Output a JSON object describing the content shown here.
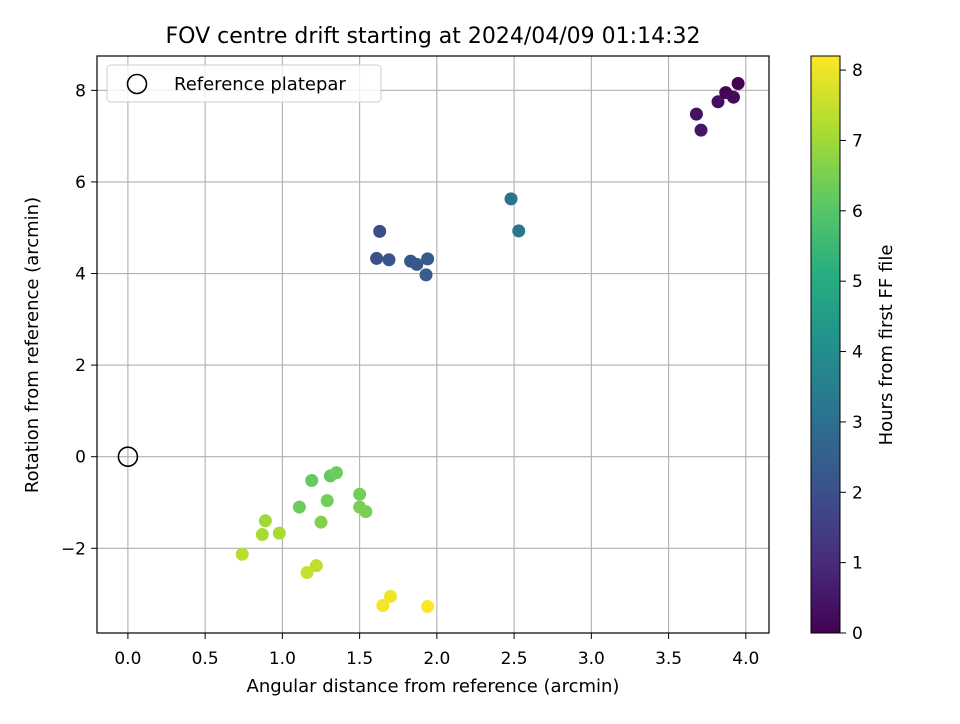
{
  "chart_data": {
    "type": "scatter",
    "title": "FOV centre drift starting at 2024/04/09 01:14:32",
    "xlabel": "Angular distance from reference (arcmin)",
    "ylabel": "Rotation from reference (arcmin)",
    "xlim": [
      -0.2,
      4.15
    ],
    "ylim": [
      -3.85,
      8.75
    ],
    "xticks": [
      0.0,
      0.5,
      1.0,
      1.5,
      2.0,
      2.5,
      3.0,
      3.5,
      4.0
    ],
    "xtick_labels": [
      "0.0",
      "0.5",
      "1.0",
      "1.5",
      "2.0",
      "2.5",
      "3.0",
      "3.5",
      "4.0"
    ],
    "yticks": [
      -2,
      0,
      2,
      4,
      6,
      8
    ],
    "ytick_labels": [
      "−2",
      "0",
      "2",
      "4",
      "6",
      "8"
    ],
    "grid": true,
    "legend": {
      "position": "top-left",
      "entries": [
        {
          "label": "Reference platepar",
          "marker": "open-circle",
          "color": "#000000"
        }
      ]
    },
    "reference_point": {
      "x": 0.0,
      "y": 0.0
    },
    "colorbar": {
      "label": "Hours from first FF file",
      "colormap": "viridis",
      "range": [
        0,
        8.2
      ],
      "ticks": [
        0,
        1,
        2,
        3,
        4,
        5,
        6,
        7,
        8
      ],
      "tick_labels": [
        "0",
        "1",
        "2",
        "3",
        "4",
        "5",
        "6",
        "7",
        "8"
      ]
    },
    "points": [
      {
        "x": 3.95,
        "y": 8.15,
        "hours": 0.0
      },
      {
        "x": 3.87,
        "y": 7.95,
        "hours": 0.1
      },
      {
        "x": 3.92,
        "y": 7.85,
        "hours": 0.2
      },
      {
        "x": 3.82,
        "y": 7.75,
        "hours": 0.3
      },
      {
        "x": 3.68,
        "y": 7.48,
        "hours": 0.4
      },
      {
        "x": 3.71,
        "y": 7.13,
        "hours": 0.5
      },
      {
        "x": 1.63,
        "y": 4.92,
        "hours": 1.9
      },
      {
        "x": 1.61,
        "y": 4.33,
        "hours": 2.0
      },
      {
        "x": 1.69,
        "y": 4.3,
        "hours": 2.1
      },
      {
        "x": 1.83,
        "y": 4.27,
        "hours": 2.2
      },
      {
        "x": 1.87,
        "y": 4.2,
        "hours": 2.2
      },
      {
        "x": 1.94,
        "y": 4.32,
        "hours": 2.3
      },
      {
        "x": 1.93,
        "y": 3.97,
        "hours": 2.4
      },
      {
        "x": 2.48,
        "y": 5.63,
        "hours": 3.1
      },
      {
        "x": 2.53,
        "y": 4.93,
        "hours": 3.2
      },
      {
        "x": 1.19,
        "y": -0.52,
        "hours": 6.2
      },
      {
        "x": 1.31,
        "y": -0.42,
        "hours": 6.2
      },
      {
        "x": 1.35,
        "y": -0.35,
        "hours": 6.3
      },
      {
        "x": 1.11,
        "y": -1.1,
        "hours": 6.3
      },
      {
        "x": 1.29,
        "y": -0.96,
        "hours": 6.4
      },
      {
        "x": 1.5,
        "y": -0.82,
        "hours": 6.4
      },
      {
        "x": 1.5,
        "y": -1.1,
        "hours": 6.5
      },
      {
        "x": 1.54,
        "y": -1.2,
        "hours": 6.5
      },
      {
        "x": 1.25,
        "y": -1.43,
        "hours": 6.6
      },
      {
        "x": 0.89,
        "y": -1.4,
        "hours": 7.0
      },
      {
        "x": 0.87,
        "y": -1.7,
        "hours": 7.1
      },
      {
        "x": 0.98,
        "y": -1.67,
        "hours": 7.1
      },
      {
        "x": 0.74,
        "y": -2.13,
        "hours": 7.3
      },
      {
        "x": 1.22,
        "y": -2.38,
        "hours": 7.4
      },
      {
        "x": 1.16,
        "y": -2.53,
        "hours": 7.5
      },
      {
        "x": 1.7,
        "y": -3.05,
        "hours": 8.0
      },
      {
        "x": 1.65,
        "y": -3.25,
        "hours": 8.1
      },
      {
        "x": 1.94,
        "y": -3.27,
        "hours": 8.2
      }
    ]
  }
}
